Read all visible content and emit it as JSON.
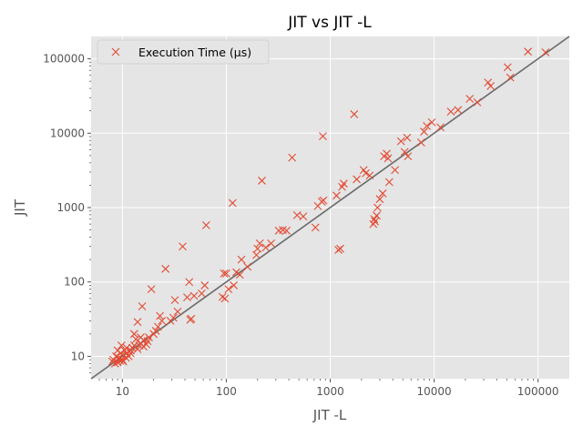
{
  "chart_data": {
    "type": "scatter",
    "title": "JIT vs JIT -L",
    "xlabel": "JIT -L",
    "ylabel": "JIT",
    "xscale": "log",
    "yscale": "log",
    "xlim": [
      5,
      200000
    ],
    "ylim": [
      5,
      200000
    ],
    "x_ticks": [
      10,
      100,
      1000,
      10000,
      100000
    ],
    "y_ticks": [
      10,
      100,
      1000,
      10000,
      100000
    ],
    "x_tick_labels": [
      "10",
      "100",
      "1000",
      "10000",
      "100000"
    ],
    "y_tick_labels": [
      "10",
      "100",
      "1000",
      "10000",
      "100000"
    ],
    "grid": true,
    "legend_position": "top-left",
    "reference_line": {
      "type": "y=x",
      "color": "#555555"
    },
    "series": [
      {
        "name": "Execution Time (µs)",
        "marker": "x",
        "color": "#e24a33",
        "points": [
          [
            8,
            8.5
          ],
          [
            8.2,
            9
          ],
          [
            8.5,
            8
          ],
          [
            8.7,
            10
          ],
          [
            9,
            8.3
          ],
          [
            9,
            12
          ],
          [
            9.2,
            9.5
          ],
          [
            9.5,
            8.7
          ],
          [
            9.6,
            11
          ],
          [
            9.8,
            14
          ],
          [
            10,
            9
          ],
          [
            10,
            10.5
          ],
          [
            10.2,
            8.5
          ],
          [
            10.5,
            12
          ],
          [
            10.8,
            9.6
          ],
          [
            11,
            11
          ],
          [
            11,
            13
          ],
          [
            11.5,
            10
          ],
          [
            12,
            12
          ],
          [
            12,
            11
          ],
          [
            12.5,
            13
          ],
          [
            13,
            14
          ],
          [
            13,
            20
          ],
          [
            13.5,
            17
          ],
          [
            14,
            12.5
          ],
          [
            14,
            29
          ],
          [
            14.5,
            14
          ],
          [
            15,
            15
          ],
          [
            15,
            18
          ],
          [
            15.5,
            47
          ],
          [
            16,
            13.5
          ],
          [
            16,
            16.5
          ],
          [
            17,
            14.5
          ],
          [
            17.5,
            16
          ],
          [
            18,
            18
          ],
          [
            19,
            80
          ],
          [
            20,
            20
          ],
          [
            21,
            22
          ],
          [
            22,
            25
          ],
          [
            23,
            35
          ],
          [
            24,
            30
          ],
          [
            26,
            150
          ],
          [
            29,
            30
          ],
          [
            31,
            33
          ],
          [
            32,
            57
          ],
          [
            34,
            40
          ],
          [
            38,
            300
          ],
          [
            42,
            62
          ],
          [
            44,
            100
          ],
          [
            45,
            31
          ],
          [
            46,
            32
          ],
          [
            49,
            65
          ],
          [
            58,
            70
          ],
          [
            62,
            90
          ],
          [
            64,
            580
          ],
          [
            92,
            63
          ],
          [
            95,
            130
          ],
          [
            97,
            60
          ],
          [
            100,
            130
          ],
          [
            105,
            80
          ],
          [
            115,
            1150
          ],
          [
            118,
            90
          ],
          [
            125,
            135
          ],
          [
            135,
            125
          ],
          [
            140,
            200
          ],
          [
            160,
            160
          ],
          [
            195,
            230
          ],
          [
            200,
            280
          ],
          [
            210,
            330
          ],
          [
            220,
            2300
          ],
          [
            240,
            290
          ],
          [
            270,
            330
          ],
          [
            320,
            490
          ],
          [
            350,
            500
          ],
          [
            380,
            490
          ],
          [
            430,
            4700
          ],
          [
            480,
            790
          ],
          [
            550,
            760
          ],
          [
            720,
            540
          ],
          [
            760,
            1050
          ],
          [
            830,
            1200
          ],
          [
            850,
            9100
          ],
          [
            860,
            1250
          ],
          [
            1150,
            1450
          ],
          [
            1200,
            270
          ],
          [
            1250,
            280
          ],
          [
            1300,
            1900
          ],
          [
            1350,
            2100
          ],
          [
            1700,
            18000
          ],
          [
            1800,
            2400
          ],
          [
            2100,
            3200
          ],
          [
            2200,
            2900
          ],
          [
            2400,
            2700
          ],
          [
            2600,
            600
          ],
          [
            2650,
            700
          ],
          [
            2700,
            650
          ],
          [
            2800,
            780
          ],
          [
            2850,
            1000
          ],
          [
            3000,
            1300
          ],
          [
            3200,
            1550
          ],
          [
            3300,
            4900
          ],
          [
            3500,
            5300
          ],
          [
            3600,
            4600
          ],
          [
            3700,
            2200
          ],
          [
            4200,
            3200
          ],
          [
            4800,
            7800
          ],
          [
            5200,
            5600
          ],
          [
            5500,
            8700
          ],
          [
            5600,
            4900
          ],
          [
            7500,
            7500
          ],
          [
            8000,
            10500
          ],
          [
            8500,
            12500
          ],
          [
            9500,
            14000
          ],
          [
            11500,
            12000
          ],
          [
            14500,
            19500
          ],
          [
            17000,
            20500
          ],
          [
            22000,
            29000
          ],
          [
            26000,
            26000
          ],
          [
            33000,
            48000
          ],
          [
            35000,
            43000
          ],
          [
            51000,
            77000
          ],
          [
            54000,
            56000
          ],
          [
            80000,
            125000
          ],
          [
            118000,
            122000
          ]
        ]
      }
    ]
  }
}
